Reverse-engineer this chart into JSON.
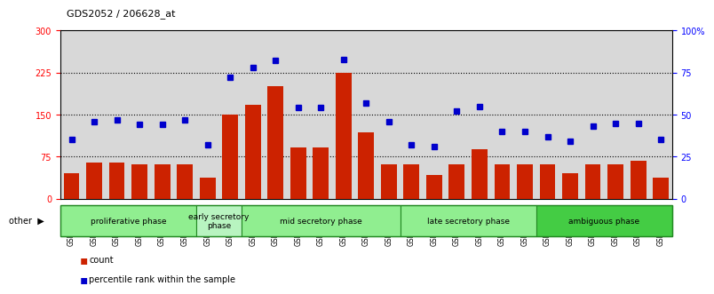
{
  "title": "GDS2052 / 206628_at",
  "samples": [
    "GSM109814",
    "GSM109815",
    "GSM109816",
    "GSM109817",
    "GSM109820",
    "GSM109821",
    "GSM109822",
    "GSM109824",
    "GSM109825",
    "GSM109826",
    "GSM109827",
    "GSM109828",
    "GSM109829",
    "GSM109830",
    "GSM109831",
    "GSM109834",
    "GSM109835",
    "GSM109836",
    "GSM109837",
    "GSM109838",
    "GSM109839",
    "GSM109818",
    "GSM109819",
    "GSM109823",
    "GSM109832",
    "GSM109833",
    "GSM109840"
  ],
  "counts": [
    45,
    65,
    65,
    62,
    62,
    62,
    38,
    150,
    168,
    200,
    92,
    92,
    225,
    118,
    62,
    62,
    42,
    62,
    88,
    62,
    62,
    62,
    45,
    62,
    62,
    68,
    38
  ],
  "percentiles": [
    35,
    46,
    47,
    44,
    44,
    47,
    32,
    72,
    78,
    82,
    54,
    54,
    83,
    57,
    46,
    32,
    31,
    52,
    55,
    40,
    40,
    37,
    34,
    43,
    45,
    45,
    35
  ],
  "phases": [
    {
      "label": "proliferative phase",
      "start": 0,
      "end": 6,
      "color": "#90EE90"
    },
    {
      "label": "early secretory\nphase",
      "start": 6,
      "end": 8,
      "color": "#b8f4c0"
    },
    {
      "label": "mid secretory phase",
      "start": 8,
      "end": 15,
      "color": "#90EE90"
    },
    {
      "label": "late secretory phase",
      "start": 15,
      "end": 21,
      "color": "#90EE90"
    },
    {
      "label": "ambiguous phase",
      "start": 21,
      "end": 27,
      "color": "#44cc44"
    }
  ],
  "bar_color": "#cc2200",
  "dot_color": "#0000cc",
  "ylim_left": [
    0,
    300
  ],
  "ylim_right": [
    0,
    100
  ],
  "yticks_left": [
    0,
    75,
    150,
    225,
    300
  ],
  "yticks_right": [
    0,
    25,
    50,
    75,
    100
  ],
  "ytick_labels_right": [
    "0",
    "25",
    "50",
    "75",
    "100%"
  ],
  "hgrid_vals": [
    75,
    150,
    225
  ],
  "bg_color": "#d8d8d8",
  "other_label": "other"
}
